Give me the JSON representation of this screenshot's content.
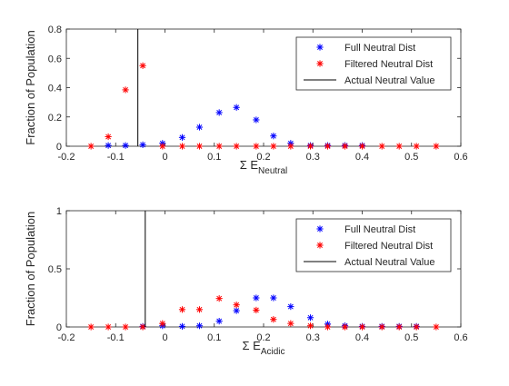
{
  "chart_data": [
    {
      "type": "scatter",
      "xlabel": "Σ E",
      "xlabel_sub": "Neutral",
      "ylabel": "Fraction of Population",
      "xlim": [
        -0.2,
        0.6
      ],
      "ylim": [
        0,
        0.8
      ],
      "xticks": [
        "-0.2",
        "-0.1",
        "0",
        "0.1",
        "0.2",
        "0.3",
        "0.4",
        "0.5",
        "0.6"
      ],
      "yticks": [
        "0",
        "0.2",
        "0.4",
        "0.6",
        "0.8"
      ],
      "grid": false,
      "legend_position": "top-right",
      "series": [
        {
          "name": "Full Neutral Dist",
          "color": "#0000ff",
          "marker": "*",
          "x": [
            -0.115,
            -0.08,
            -0.045,
            -0.005,
            0.035,
            0.07,
            0.11,
            0.145,
            0.185,
            0.22,
            0.255,
            0.295,
            0.33,
            0.365,
            0.4
          ],
          "y": [
            0.005,
            0.005,
            0.01,
            0.02,
            0.06,
            0.13,
            0.23,
            0.265,
            0.18,
            0.07,
            0.02,
            0.005,
            0.005,
            0.005,
            0.005
          ]
        },
        {
          "name": "Filtered Neutral Dist",
          "color": "#ff0000",
          "marker": "*",
          "x": [
            -0.15,
            -0.115,
            -0.08,
            -0.045,
            -0.005,
            0.035,
            0.07,
            0.11,
            0.145,
            0.185,
            0.22,
            0.255,
            0.295,
            0.33,
            0.365,
            0.4,
            0.44,
            0.475,
            0.51,
            0.55
          ],
          "y": [
            0,
            0.065,
            0.385,
            0.55,
            0,
            0,
            0,
            0,
            0,
            0,
            0,
            0,
            0,
            0,
            0,
            0,
            0,
            0,
            0,
            0
          ]
        },
        {
          "name": "Actual Neutral Value",
          "color": "#000000",
          "type": "vline",
          "x": -0.055
        }
      ]
    },
    {
      "type": "scatter",
      "xlabel": "Σ E",
      "xlabel_sub": "Acidic",
      "ylabel": "Fraction of Population",
      "xlim": [
        -0.2,
        0.6
      ],
      "ylim": [
        0,
        1
      ],
      "xticks": [
        "-0.2",
        "-0.1",
        "0",
        "0.1",
        "0.2",
        "0.3",
        "0.4",
        "0.5",
        "0.6"
      ],
      "yticks": [
        "0",
        "0.5",
        "1"
      ],
      "grid": false,
      "legend_position": "top-right",
      "series": [
        {
          "name": "Full Neutral Dist",
          "color": "#0000ff",
          "marker": "*",
          "x": [
            -0.045,
            -0.005,
            0.035,
            0.07,
            0.11,
            0.145,
            0.185,
            0.22,
            0.255,
            0.295,
            0.33,
            0.365,
            0.4,
            0.44,
            0.475,
            0.51
          ],
          "y": [
            0.005,
            0.01,
            0.005,
            0.01,
            0.05,
            0.14,
            0.25,
            0.25,
            0.175,
            0.08,
            0.025,
            0.01,
            0.005,
            0.005,
            0.005,
            0.005
          ]
        },
        {
          "name": "Filtered Neutral Dist",
          "color": "#ff0000",
          "marker": "*",
          "x": [
            -0.15,
            -0.115,
            -0.08,
            -0.045,
            -0.005,
            0.035,
            0.07,
            0.11,
            0.145,
            0.185,
            0.22,
            0.255,
            0.295,
            0.33,
            0.365,
            0.4,
            0.44,
            0.475,
            0.51,
            0.55
          ],
          "y": [
            0,
            0,
            0,
            0,
            0.03,
            0.15,
            0.15,
            0.245,
            0.19,
            0.145,
            0.065,
            0.03,
            0.01,
            0,
            0,
            0,
            0,
            0,
            0,
            0
          ]
        },
        {
          "name": "Actual Neutral Value",
          "color": "#000000",
          "type": "vline",
          "x": -0.04
        }
      ]
    }
  ]
}
